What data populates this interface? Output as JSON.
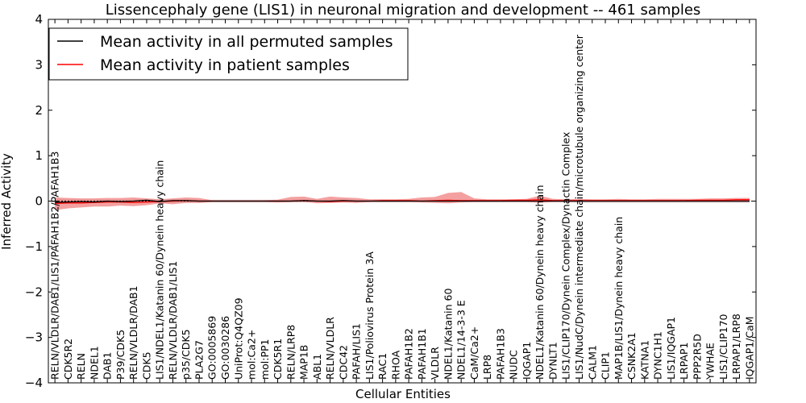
{
  "chart_data": {
    "type": "line",
    "title": "Lissencephaly gene (LIS1) in neuronal migration and development -- 461 samples",
    "xlabel": "Cellular Entities",
    "ylabel": "Inferred Activity",
    "ylim": [
      -4,
      4
    ],
    "yticks": [
      -4,
      -3,
      -2,
      -1,
      0,
      1,
      2,
      3,
      4
    ],
    "ytick_labels": [
      "−4",
      "−3",
      "−2",
      "−1",
      "0",
      "1",
      "2",
      "3",
      "4"
    ],
    "legend_position": "top-left",
    "colors": {
      "permuted": "#000000",
      "patient": "#ff0000",
      "patient_band": "#f08080",
      "permuted_band": "#c8c8c8"
    },
    "categories": [
      "RELN/VLDLR/DAB1/LIS1/PAFAH1B2/PAFAH1B3",
      "CDK5R2",
      "RELN",
      "NDEL1",
      "DAB1",
      "P39/CDK5",
      "RELN/VLDLR/DAB1",
      "CDK5",
      "LIS1/NDEL1/Katanin 60/Dynein heavy chain",
      "RELN/VLDLR/DAB1/LIS1",
      "p35/CDK5",
      "PLA2G7",
      "GO:0005869",
      "GO:0030286",
      "UniProt:Q4QZ09",
      "mol:Ca2+",
      "mol:PP1",
      "CDK5R1",
      "RELN/LRP8",
      "MAP1B",
      "ABL1",
      "RELN/VLDLR",
      "CDC42",
      "PAFAH/LIS1",
      "LIS1/Poliovirus Protein 3A",
      "RAC1",
      "RHOA",
      "PAFAH1B2",
      "PAFAH1B1",
      "VLDLR",
      "NDEL1/Katanin 60",
      "NDEL1/14-3-3 E",
      "CaM/Ca2+",
      "LRP8",
      "PAFAH1B3",
      "NUDC",
      "IQGAP1",
      "NDEL1/Katanin 60/Dynein heavy chain",
      "DYNLT1",
      "LIS1/CLIP170/Dynein Complex/Dynactin Complex",
      "LIS1/NudC/Dynein intermediate chain/microtubule organizing center",
      "CALM1",
      "CLIP1",
      "MAP1B/LIS1/Dynein heavy chain",
      "CSNK2A1",
      "KATNA1",
      "DYNC1H1",
      "LIS1/IQGAP1",
      "LRPAP1",
      "PPP2R5D",
      "YWHAE",
      "LIS1/CLIP170",
      "LRPAP1/LRP8",
      "IQGAP1/CaM"
    ],
    "series": [
      {
        "name": "Mean activity in all permuted samples",
        "values": [
          -0.03,
          -0.02,
          -0.01,
          -0.02,
          0.0,
          -0.01,
          0.0,
          0.02,
          -0.01,
          0.01,
          0.01,
          0.0,
          0.0,
          0.0,
          0.0,
          0.0,
          0.0,
          0.0,
          0.0,
          0.01,
          0.0,
          0.0,
          0.01,
          0.0,
          0.0,
          0.0,
          0.0,
          0.0,
          0.0,
          0.0,
          0.0,
          0.0,
          0.0,
          0.0,
          0.0,
          0.0,
          0.0,
          0.0,
          0.0,
          0.0,
          0.0,
          0.0,
          0.0,
          0.0,
          0.0,
          0.0,
          0.0,
          0.0,
          0.0,
          0.0,
          0.0,
          0.0,
          0.0,
          0.0
        ],
        "band_low": [
          -0.06,
          -0.05,
          -0.05,
          -0.04,
          -0.04,
          -0.04,
          -0.04,
          -0.04,
          -0.04,
          -0.04,
          -0.04,
          -0.04,
          -0.03,
          -0.03,
          -0.03,
          -0.03,
          -0.03,
          -0.03,
          -0.03,
          -0.03,
          -0.03,
          -0.03,
          -0.03,
          -0.03,
          -0.03,
          -0.03,
          -0.03,
          -0.03,
          -0.03,
          -0.03,
          -0.03,
          -0.03,
          -0.03,
          -0.03,
          -0.03,
          -0.03,
          -0.03,
          -0.03,
          -0.03,
          -0.03,
          -0.04,
          -0.04,
          -0.04,
          -0.04,
          -0.04,
          -0.04,
          -0.04,
          -0.04,
          -0.04,
          -0.04,
          -0.04,
          -0.04,
          -0.04,
          -0.04
        ],
        "band_high": [
          0.05,
          0.05,
          0.04,
          0.04,
          0.04,
          0.04,
          0.04,
          0.05,
          0.04,
          0.04,
          0.04,
          0.03,
          0.03,
          0.03,
          0.03,
          0.03,
          0.03,
          0.03,
          0.03,
          0.03,
          0.03,
          0.03,
          0.03,
          0.03,
          0.03,
          0.03,
          0.03,
          0.03,
          0.03,
          0.03,
          0.03,
          0.03,
          0.03,
          0.03,
          0.03,
          0.03,
          0.03,
          0.03,
          0.03,
          0.03,
          0.03,
          0.03,
          0.03,
          0.03,
          0.03,
          0.03,
          0.03,
          0.03,
          0.03,
          0.03,
          0.03,
          0.03,
          0.03,
          0.03
        ]
      },
      {
        "name": "Mean activity in patient samples",
        "values": [
          -0.05,
          -0.04,
          -0.04,
          -0.03,
          -0.02,
          -0.02,
          -0.03,
          -0.02,
          -0.01,
          0.0,
          0.01,
          0.0,
          0.0,
          0.0,
          0.0,
          0.0,
          0.0,
          0.0,
          0.0,
          0.01,
          0.0,
          -0.01,
          0.0,
          0.0,
          0.0,
          0.01,
          0.01,
          0.01,
          0.0,
          0.01,
          0.02,
          0.01,
          0.01,
          0.01,
          0.01,
          0.02,
          0.02,
          0.03,
          0.01,
          0.01,
          0.01,
          0.01,
          0.01,
          0.01,
          0.01,
          0.01,
          0.01,
          0.01,
          0.01,
          0.02,
          0.02,
          0.02,
          0.03,
          0.03
        ],
        "band_low": [
          -0.2,
          -0.16,
          -0.14,
          -0.12,
          -0.12,
          -0.1,
          -0.11,
          -0.09,
          -0.05,
          -0.07,
          -0.04,
          -0.04,
          -0.02,
          -0.02,
          -0.02,
          -0.02,
          -0.02,
          -0.03,
          -0.02,
          -0.02,
          -0.05,
          -0.04,
          -0.03,
          -0.04,
          -0.02,
          -0.02,
          -0.02,
          -0.02,
          -0.03,
          -0.04,
          -0.05,
          -0.03,
          -0.02,
          -0.02,
          -0.02,
          -0.02,
          -0.02,
          -0.04,
          -0.02,
          -0.02,
          -0.02,
          -0.02,
          -0.02,
          -0.02,
          -0.02,
          -0.02,
          -0.02,
          -0.02,
          -0.02,
          -0.02,
          -0.02,
          -0.02,
          -0.02,
          -0.02
        ],
        "band_high": [
          0.08,
          0.07,
          0.06,
          0.06,
          0.07,
          0.07,
          0.08,
          0.06,
          0.04,
          0.06,
          0.08,
          0.07,
          0.02,
          0.02,
          0.02,
          0.02,
          0.02,
          0.03,
          0.09,
          0.1,
          0.05,
          0.1,
          0.08,
          0.07,
          0.04,
          0.04,
          0.04,
          0.05,
          0.08,
          0.09,
          0.18,
          0.2,
          0.06,
          0.04,
          0.04,
          0.04,
          0.05,
          0.12,
          0.05,
          0.04,
          0.05,
          0.04,
          0.04,
          0.05,
          0.04,
          0.04,
          0.05,
          0.05,
          0.05,
          0.05,
          0.06,
          0.06,
          0.07,
          0.07
        ]
      }
    ]
  }
}
